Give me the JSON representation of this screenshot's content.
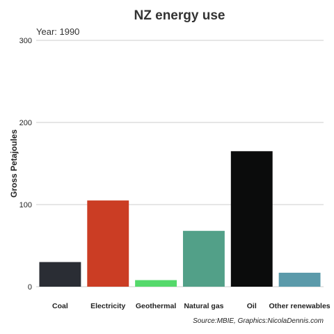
{
  "chart_data": {
    "type": "bar",
    "title": "NZ energy use",
    "subtitle": "Year: 1990",
    "xlabel": "",
    "ylabel": "Gross Petajoules",
    "ylim": [
      0,
      300
    ],
    "yticks": [
      0,
      100,
      200,
      300
    ],
    "categories": [
      "Coal",
      "Electricity",
      "Geothermal",
      "Natural gas",
      "Oil",
      "Other renewables"
    ],
    "values": [
      30,
      105,
      8,
      68,
      165,
      17
    ],
    "colors": [
      "#2a2d34",
      "#cb3d24",
      "#55d96b",
      "#52a088",
      "#0b0c0c",
      "#5b9aaa"
    ],
    "grid": true,
    "legend": "none",
    "caption": "Source:MBIE, Graphics:NicolaDennis.com"
  }
}
